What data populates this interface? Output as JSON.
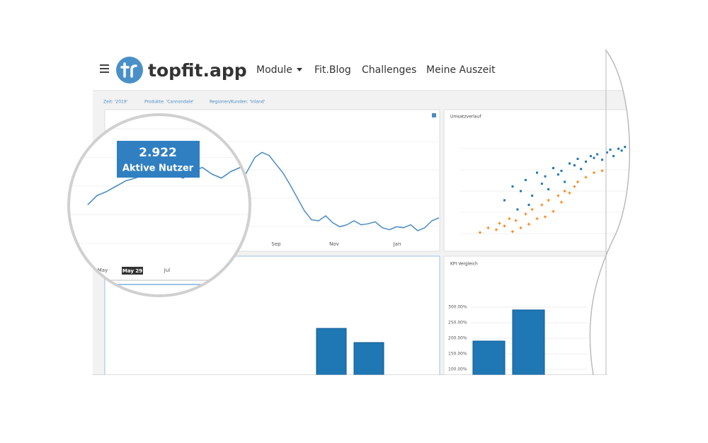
{
  "header": {
    "logo": "topfit.app",
    "nav": [
      "Module",
      "Fit.Blog",
      "Challenges",
      "Meine Auszeit"
    ]
  },
  "filters": [
    "Zeit: '2019'",
    "Produkte: 'Cannondale'",
    "Regionen/Kunden: 'Inland'"
  ],
  "line_chart": {
    "type": "line",
    "color": "#4a8cc4",
    "ylim": [
      0,
      100
    ],
    "values": [
      36,
      43,
      46,
      50,
      54,
      56,
      59,
      57,
      61,
      59,
      56,
      61,
      64,
      59,
      56,
      61,
      64,
      68,
      64,
      59,
      71,
      84,
      89,
      86,
      77,
      68,
      56,
      43,
      30,
      21,
      20,
      25,
      18,
      14,
      16,
      20,
      16,
      17,
      19,
      13,
      11,
      14,
      13,
      16,
      10,
      13,
      20,
      23
    ],
    "x_labels": [
      "Sep",
      "Nov",
      "Jan"
    ],
    "tooltip": {
      "value": "2.922",
      "label": "Aktive Nutzer"
    },
    "zoom_labels": [
      "May",
      "May 29",
      "Jul"
    ]
  },
  "scatter_chart": {
    "type": "scatter",
    "title": "Umsatzverlauf",
    "xlim": [
      0,
      100
    ],
    "ylim": [
      0,
      100
    ],
    "series": [
      {
        "color": "#1f77b4",
        "x": [
          25,
          30,
          35,
          38,
          42,
          45,
          48,
          50,
          52,
          55,
          58,
          60,
          62,
          65,
          68,
          70,
          72,
          75,
          78,
          80,
          82,
          85,
          88,
          90,
          92,
          95,
          97,
          99,
          40,
          33
        ],
        "values": [
          40,
          55,
          50,
          62,
          45,
          70,
          58,
          66,
          52,
          75,
          68,
          72,
          60,
          80,
          78,
          85,
          74,
          82,
          88,
          86,
          90,
          84,
          92,
          95,
          88,
          96,
          94,
          98,
          35,
          30
        ]
      },
      {
        "color": "#ff7f0e",
        "x": [
          10,
          15,
          20,
          22,
          25,
          28,
          30,
          32,
          35,
          38,
          40,
          42,
          45,
          48,
          50,
          52,
          55,
          58,
          60,
          62,
          65,
          68,
          70,
          75,
          80,
          85
        ],
        "values": [
          5,
          10,
          8,
          15,
          12,
          20,
          6,
          18,
          10,
          25,
          14,
          30,
          20,
          35,
          22,
          40,
          28,
          45,
          38,
          50,
          48,
          55,
          60,
          65,
          70,
          72
        ]
      }
    ]
  },
  "bar_chart": {
    "type": "bar",
    "color": "#1f77b4",
    "values": [
      100,
      70
    ],
    "ylim": [
      0,
      120
    ]
  },
  "kpi_chart": {
    "type": "bar",
    "title": "KPI Vergleich",
    "color": "#1f77b4",
    "values": [
      191,
      291
    ],
    "ylim": [
      80,
      310
    ],
    "yticks": [
      {
        "value": 300,
        "label": "300.00%"
      },
      {
        "value": 250,
        "label": "250.00%"
      },
      {
        "value": 200,
        "label": "200.00%"
      },
      {
        "value": 150,
        "label": "150.00%"
      },
      {
        "value": 100,
        "label": "100.00%"
      }
    ]
  }
}
